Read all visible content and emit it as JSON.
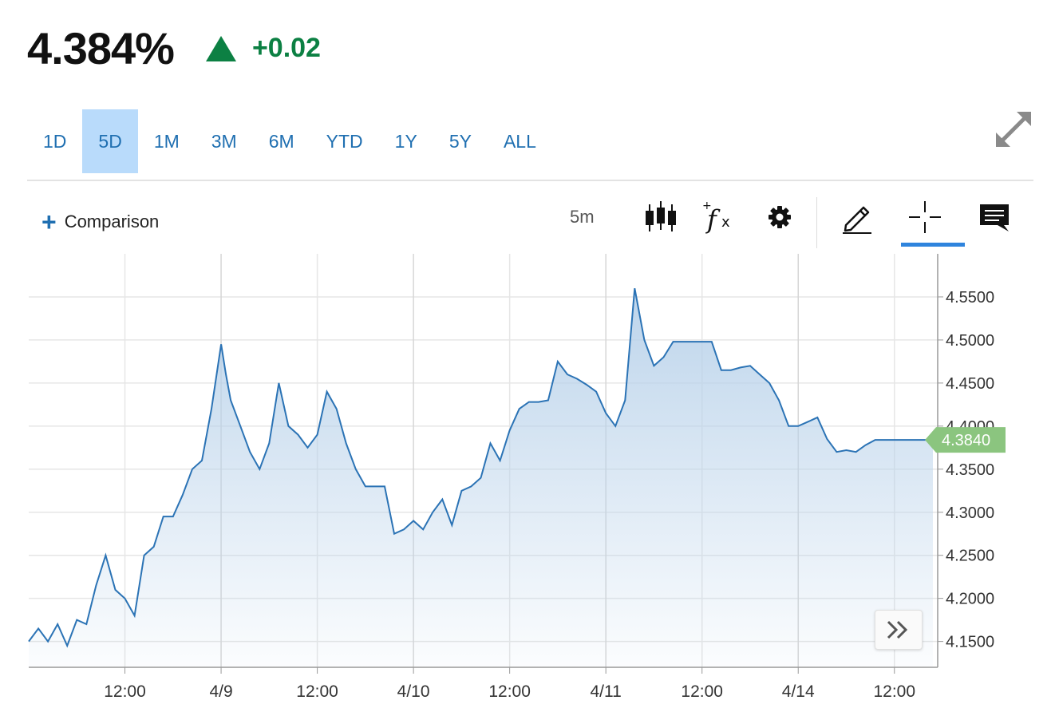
{
  "quote": {
    "price": "4.384%",
    "change": "+0.02",
    "direction": "up",
    "color_up": "#0c8043"
  },
  "ranges": [
    {
      "label": "1D",
      "active": false
    },
    {
      "label": "5D",
      "active": true
    },
    {
      "label": "1M",
      "active": false
    },
    {
      "label": "3M",
      "active": false
    },
    {
      "label": "6M",
      "active": false
    },
    {
      "label": "YTD",
      "active": false
    },
    {
      "label": "1Y",
      "active": false
    },
    {
      "label": "5Y",
      "active": false
    },
    {
      "label": "ALL",
      "active": false
    }
  ],
  "toolbar": {
    "comparison_label": "Comparison",
    "interval": "5m",
    "icons": [
      "candlestick-icon",
      "fx-icon",
      "gear-icon",
      "pencil-icon",
      "crosshair-icon",
      "comment-icon"
    ],
    "active_tool": "crosshair-icon"
  },
  "chart_data": {
    "type": "area",
    "x_ticks": [
      "12:00",
      "4/9",
      "12:00",
      "4/10",
      "12:00",
      "4/11",
      "12:00",
      "4/14",
      "12:00"
    ],
    "y_ticks": [
      "4.1500",
      "4.2000",
      "4.2500",
      "4.3000",
      "4.3500",
      "4.4000",
      "4.4500",
      "4.5000",
      "4.5500"
    ],
    "ylim": [
      4.12,
      4.6
    ],
    "xlim": [
      0,
      9.45
    ],
    "last_value": "4.3840",
    "line_color": "#2b73b5",
    "fill_color": "#b9d2ea",
    "last_badge_color": "#8bc57f",
    "grid": true,
    "series": [
      {
        "x": [
          0,
          0.1,
          0.2,
          0.3,
          0.4,
          0.5,
          0.6,
          0.7,
          0.8,
          0.9,
          1.0,
          1.1,
          1.2,
          1.3,
          1.4,
          1.5,
          1.6,
          1.7,
          1.8,
          1.9,
          2.0,
          2.05,
          2.1,
          2.2,
          2.3,
          2.4,
          2.5,
          2.6,
          2.7,
          2.8,
          2.9,
          3.0,
          3.1,
          3.2,
          3.3,
          3.4,
          3.5,
          3.6,
          3.7,
          3.8,
          3.9,
          4.0,
          4.1,
          4.2,
          4.3,
          4.4,
          4.5,
          4.6,
          4.7,
          4.8,
          4.9,
          5.0,
          5.1,
          5.2,
          5.3,
          5.4,
          5.5,
          5.6,
          5.7,
          5.8,
          5.9,
          6.0,
          6.1,
          6.2,
          6.3,
          6.4,
          6.5,
          6.6,
          6.7,
          6.8,
          6.9,
          7.0,
          7.1,
          7.2,
          7.3,
          7.4,
          7.5,
          7.6,
          7.7,
          7.8,
          7.9,
          8.0,
          8.1,
          8.2,
          8.3,
          8.4,
          8.5,
          8.6,
          8.7,
          8.8,
          8.9,
          9.0,
          9.1,
          9.2,
          9.3,
          9.4
        ],
        "y": [
          4.15,
          4.165,
          4.15,
          4.17,
          4.145,
          4.175,
          4.17,
          4.215,
          4.25,
          4.21,
          4.2,
          4.18,
          4.25,
          4.26,
          4.295,
          4.295,
          4.32,
          4.35,
          4.36,
          4.42,
          4.495,
          4.46,
          4.43,
          4.4,
          4.37,
          4.35,
          4.38,
          4.45,
          4.4,
          4.39,
          4.375,
          4.39,
          4.44,
          4.42,
          4.38,
          4.35,
          4.33,
          4.33,
          4.33,
          4.275,
          4.28,
          4.29,
          4.28,
          4.3,
          4.315,
          4.285,
          4.325,
          4.33,
          4.34,
          4.38,
          4.36,
          4.395,
          4.42,
          4.428,
          4.428,
          4.43,
          4.475,
          4.46,
          4.455,
          4.448,
          4.44,
          4.415,
          4.4,
          4.43,
          4.56,
          4.5,
          4.47,
          4.48,
          4.498,
          4.498,
          4.498,
          4.498,
          4.498,
          4.465,
          4.465,
          4.468,
          4.47,
          4.46,
          4.45,
          4.43,
          4.4,
          4.4,
          4.405,
          4.41,
          4.385,
          4.37,
          4.372,
          4.37,
          4.378,
          4.384,
          4.384,
          4.384,
          4.384,
          4.384,
          4.384,
          4.384
        ]
      }
    ]
  }
}
